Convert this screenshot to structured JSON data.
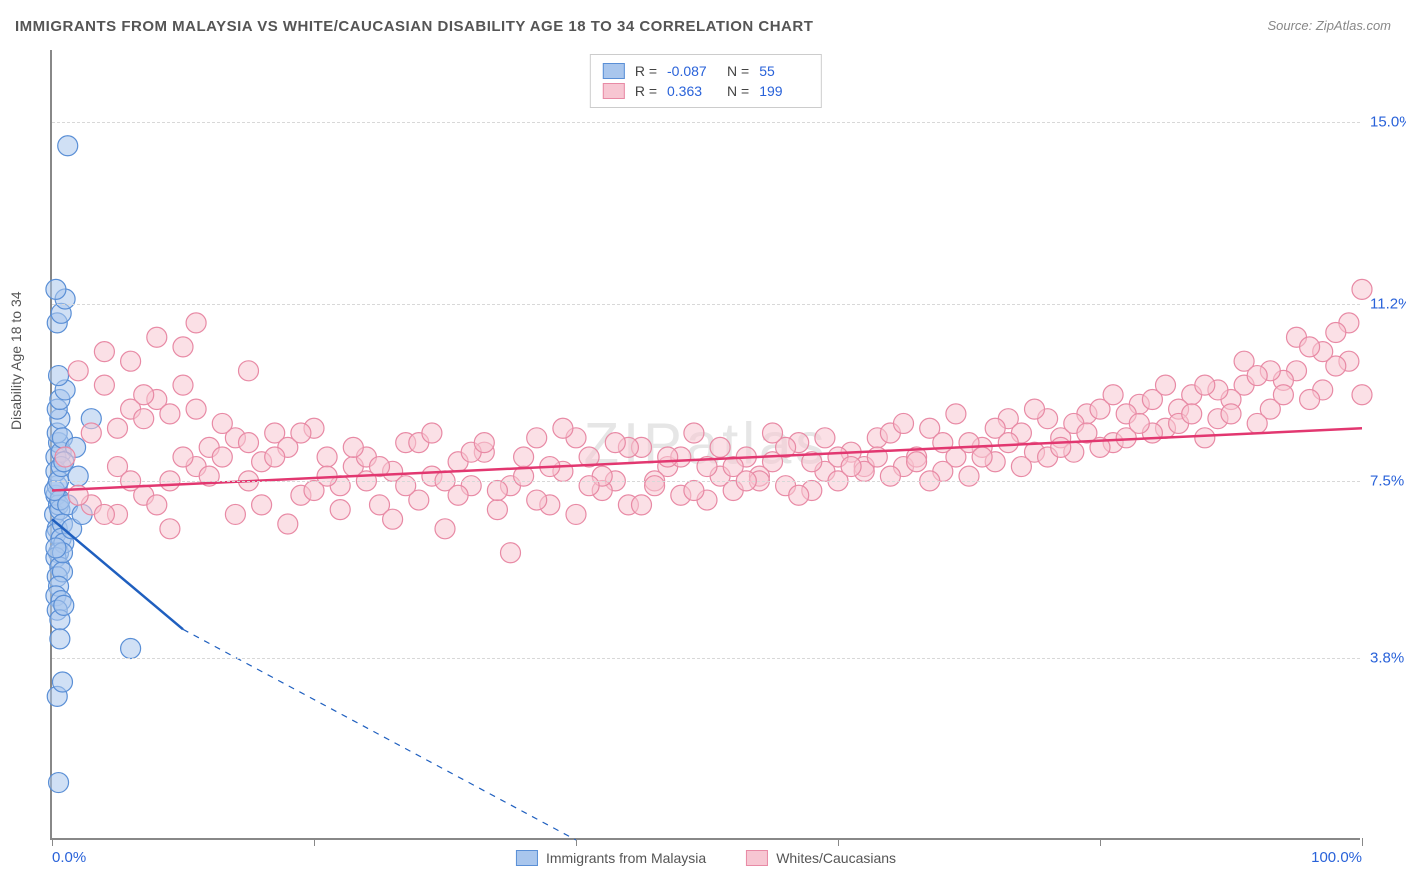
{
  "title": "IMMIGRANTS FROM MALAYSIA VS WHITE/CAUCASIAN DISABILITY AGE 18 TO 34 CORRELATION CHART",
  "source": "Source: ZipAtlas.com",
  "watermark": "ZIPatlas",
  "ylabel": "Disability Age 18 to 34",
  "chart": {
    "type": "scatter",
    "xlim": [
      0,
      100
    ],
    "ylim": [
      0,
      16.5
    ],
    "x_ticks": [
      0,
      20,
      40,
      60,
      80,
      100
    ],
    "x_tick_labels_shown": {
      "0": "0.0%",
      "100": "100.0%"
    },
    "y_gridlines": [
      3.8,
      7.5,
      11.2,
      15.0
    ],
    "y_tick_labels": [
      "3.8%",
      "7.5%",
      "11.2%",
      "15.0%"
    ],
    "background_color": "#ffffff",
    "grid_color": "#d8d8d8",
    "axis_color": "#888888",
    "title_color": "#555555",
    "tick_label_color": "#2962d9",
    "title_fontsize": 15,
    "label_fontsize": 14,
    "tick_fontsize": 15,
    "marker_radius": 10,
    "marker_opacity": 0.55,
    "line_width": 2.5
  },
  "series": [
    {
      "name": "Immigrants from Malaysia",
      "color_fill": "#a9c6ed",
      "color_stroke": "#5a8fd6",
      "line_color": "#1f5fbf",
      "R": "-0.087",
      "N": "55",
      "trend": {
        "x1": 0,
        "y1": 6.7,
        "x2": 10,
        "y2": 4.4,
        "dash_to_x": 40,
        "dash_to_y": 0
      },
      "points": [
        [
          0.2,
          6.8
        ],
        [
          0.3,
          7.2
        ],
        [
          0.5,
          7.0
        ],
        [
          0.4,
          6.5
        ],
        [
          0.6,
          6.9
        ],
        [
          0.3,
          6.4
        ],
        [
          0.8,
          6.6
        ],
        [
          0.4,
          7.4
        ],
        [
          0.6,
          7.1
        ],
        [
          0.2,
          7.3
        ],
        [
          0.7,
          6.3
        ],
        [
          0.5,
          6.0
        ],
        [
          0.9,
          6.2
        ],
        [
          0.3,
          5.9
        ],
        [
          0.6,
          5.7
        ],
        [
          0.4,
          5.5
        ],
        [
          0.8,
          5.6
        ],
        [
          0.5,
          5.3
        ],
        [
          0.3,
          5.1
        ],
        [
          0.7,
          5.0
        ],
        [
          0.4,
          4.8
        ],
        [
          0.6,
          4.6
        ],
        [
          0.9,
          4.9
        ],
        [
          0.3,
          8.0
        ],
        [
          0.5,
          8.3
        ],
        [
          0.7,
          8.1
        ],
        [
          0.4,
          8.5
        ],
        [
          0.6,
          8.8
        ],
        [
          0.8,
          8.4
        ],
        [
          0.3,
          7.7
        ],
        [
          0.5,
          7.5
        ],
        [
          0.7,
          7.8
        ],
        [
          0.4,
          9.0
        ],
        [
          0.6,
          9.2
        ],
        [
          1.0,
          9.4
        ],
        [
          0.5,
          9.7
        ],
        [
          0.8,
          6.0
        ],
        [
          1.2,
          7.0
        ],
        [
          1.5,
          6.5
        ],
        [
          1.8,
          8.2
        ],
        [
          2.0,
          7.6
        ],
        [
          2.3,
          6.8
        ],
        [
          0.4,
          10.8
        ],
        [
          0.7,
          11.0
        ],
        [
          1.0,
          11.3
        ],
        [
          0.3,
          11.5
        ],
        [
          0.6,
          4.2
        ],
        [
          0.4,
          3.0
        ],
        [
          0.8,
          3.3
        ],
        [
          0.5,
          1.2
        ],
        [
          1.2,
          14.5
        ],
        [
          3.0,
          8.8
        ],
        [
          6.0,
          4.0
        ],
        [
          0.3,
          6.1
        ],
        [
          0.9,
          7.9
        ]
      ]
    },
    {
      "name": "Whites/Caucasians",
      "color_fill": "#f7c6d2",
      "color_stroke": "#e88aa5",
      "line_color": "#e23770",
      "R": "0.363",
      "N": "199",
      "trend": {
        "x1": 0,
        "y1": 7.3,
        "x2": 100,
        "y2": 8.6
      },
      "points": [
        [
          1,
          8.0
        ],
        [
          2,
          9.8
        ],
        [
          3,
          8.5
        ],
        [
          4,
          10.2
        ],
        [
          5,
          7.8
        ],
        [
          6,
          9.0
        ],
        [
          7,
          8.8
        ],
        [
          8,
          10.5
        ],
        [
          9,
          7.5
        ],
        [
          10,
          9.5
        ],
        [
          11,
          10.8
        ],
        [
          12,
          8.2
        ],
        [
          3,
          7.0
        ],
        [
          5,
          6.8
        ],
        [
          7,
          7.2
        ],
        [
          9,
          6.5
        ],
        [
          11,
          7.8
        ],
        [
          13,
          8.0
        ],
        [
          15,
          7.5
        ],
        [
          17,
          8.5
        ],
        [
          19,
          7.2
        ],
        [
          21,
          8.0
        ],
        [
          23,
          7.8
        ],
        [
          25,
          7.0
        ],
        [
          27,
          8.3
        ],
        [
          29,
          7.6
        ],
        [
          31,
          7.9
        ],
        [
          33,
          8.1
        ],
        [
          35,
          7.4
        ],
        [
          37,
          8.4
        ],
        [
          39,
          7.7
        ],
        [
          41,
          8.0
        ],
        [
          43,
          7.5
        ],
        [
          45,
          8.2
        ],
        [
          47,
          7.8
        ],
        [
          49,
          8.5
        ],
        [
          51,
          7.6
        ],
        [
          53,
          8.0
        ],
        [
          55,
          7.9
        ],
        [
          57,
          8.3
        ],
        [
          59,
          7.7
        ],
        [
          61,
          8.1
        ],
        [
          63,
          8.4
        ],
        [
          65,
          7.8
        ],
        [
          67,
          8.6
        ],
        [
          69,
          8.0
        ],
        [
          71,
          8.2
        ],
        [
          73,
          8.8
        ],
        [
          75,
          8.1
        ],
        [
          77,
          8.4
        ],
        [
          79,
          8.9
        ],
        [
          81,
          8.3
        ],
        [
          83,
          9.1
        ],
        [
          85,
          8.6
        ],
        [
          87,
          9.3
        ],
        [
          89,
          8.8
        ],
        [
          91,
          9.5
        ],
        [
          93,
          9.0
        ],
        [
          95,
          9.8
        ],
        [
          97,
          9.4
        ],
        [
          99,
          10.0
        ],
        [
          14,
          6.8
        ],
        [
          16,
          7.0
        ],
        [
          18,
          6.6
        ],
        [
          20,
          7.3
        ],
        [
          22,
          6.9
        ],
        [
          24,
          7.5
        ],
        [
          26,
          6.7
        ],
        [
          28,
          7.1
        ],
        [
          30,
          6.5
        ],
        [
          32,
          7.4
        ],
        [
          34,
          6.9
        ],
        [
          36,
          7.6
        ],
        [
          38,
          7.0
        ],
        [
          40,
          6.8
        ],
        [
          42,
          7.3
        ],
        [
          44,
          7.0
        ],
        [
          46,
          7.5
        ],
        [
          48,
          7.2
        ],
        [
          50,
          7.8
        ],
        [
          52,
          7.3
        ],
        [
          54,
          7.6
        ],
        [
          56,
          7.4
        ],
        [
          58,
          7.9
        ],
        [
          60,
          7.5
        ],
        [
          62,
          7.8
        ],
        [
          64,
          7.6
        ],
        [
          66,
          8.0
        ],
        [
          68,
          7.7
        ],
        [
          70,
          8.3
        ],
        [
          72,
          7.9
        ],
        [
          74,
          8.5
        ],
        [
          76,
          8.0
        ],
        [
          78,
          8.7
        ],
        [
          80,
          8.2
        ],
        [
          82,
          8.9
        ],
        [
          84,
          8.5
        ],
        [
          86,
          9.0
        ],
        [
          88,
          8.4
        ],
        [
          90,
          9.2
        ],
        [
          92,
          8.7
        ],
        [
          94,
          9.6
        ],
        [
          96,
          9.2
        ],
        [
          98,
          9.9
        ],
        [
          100,
          11.5
        ],
        [
          99,
          10.8
        ],
        [
          97,
          10.2
        ],
        [
          95,
          10.5
        ],
        [
          93,
          9.8
        ],
        [
          91,
          10.0
        ],
        [
          89,
          9.4
        ],
        [
          2,
          7.2
        ],
        [
          4,
          6.8
        ],
        [
          6,
          7.5
        ],
        [
          8,
          7.0
        ],
        [
          10,
          8.0
        ],
        [
          12,
          7.6
        ],
        [
          14,
          8.4
        ],
        [
          16,
          7.9
        ],
        [
          18,
          8.2
        ],
        [
          20,
          8.6
        ],
        [
          22,
          7.4
        ],
        [
          24,
          8.0
        ],
        [
          26,
          7.7
        ],
        [
          28,
          8.3
        ],
        [
          30,
          7.5
        ],
        [
          32,
          8.1
        ],
        [
          34,
          7.3
        ],
        [
          36,
          8.0
        ],
        [
          38,
          7.8
        ],
        [
          40,
          8.4
        ],
        [
          42,
          7.6
        ],
        [
          44,
          8.2
        ],
        [
          46,
          7.4
        ],
        [
          48,
          8.0
        ],
        [
          50,
          7.1
        ],
        [
          52,
          7.8
        ],
        [
          54,
          7.5
        ],
        [
          56,
          8.2
        ],
        [
          58,
          7.3
        ],
        [
          60,
          8.0
        ],
        [
          62,
          7.7
        ],
        [
          64,
          8.5
        ],
        [
          66,
          7.9
        ],
        [
          68,
          8.3
        ],
        [
          70,
          7.6
        ],
        [
          72,
          8.6
        ],
        [
          74,
          7.8
        ],
        [
          76,
          8.8
        ],
        [
          78,
          8.1
        ],
        [
          80,
          9.0
        ],
        [
          82,
          8.4
        ],
        [
          84,
          9.2
        ],
        [
          86,
          8.7
        ],
        [
          88,
          9.5
        ],
        [
          90,
          8.9
        ],
        [
          92,
          9.7
        ],
        [
          94,
          9.3
        ],
        [
          96,
          10.3
        ],
        [
          98,
          10.6
        ],
        [
          35,
          6.0
        ],
        [
          15,
          9.8
        ],
        [
          8,
          9.2
        ],
        [
          6,
          10.0
        ],
        [
          4,
          9.5
        ],
        [
          10,
          10.3
        ],
        [
          5,
          8.6
        ],
        [
          7,
          9.3
        ],
        [
          9,
          8.9
        ],
        [
          11,
          9.0
        ],
        [
          13,
          8.7
        ],
        [
          15,
          8.3
        ],
        [
          17,
          8.0
        ],
        [
          19,
          8.5
        ],
        [
          21,
          7.6
        ],
        [
          23,
          8.2
        ],
        [
          25,
          7.8
        ],
        [
          27,
          7.4
        ],
        [
          29,
          8.5
        ],
        [
          31,
          7.2
        ],
        [
          33,
          8.3
        ],
        [
          37,
          7.1
        ],
        [
          39,
          8.6
        ],
        [
          41,
          7.4
        ],
        [
          43,
          8.3
        ],
        [
          45,
          7.0
        ],
        [
          47,
          8.0
        ],
        [
          49,
          7.3
        ],
        [
          51,
          8.2
        ],
        [
          53,
          7.5
        ],
        [
          55,
          8.5
        ],
        [
          57,
          7.2
        ],
        [
          59,
          8.4
        ],
        [
          61,
          7.8
        ],
        [
          63,
          8.0
        ],
        [
          65,
          8.7
        ],
        [
          67,
          7.5
        ],
        [
          69,
          8.9
        ],
        [
          71,
          8.0
        ],
        [
          73,
          8.3
        ],
        [
          75,
          9.0
        ],
        [
          77,
          8.2
        ],
        [
          79,
          8.5
        ],
        [
          81,
          9.3
        ],
        [
          83,
          8.7
        ],
        [
          85,
          9.5
        ],
        [
          87,
          8.9
        ],
        [
          100,
          9.3
        ]
      ]
    }
  ],
  "bottom_legend": [
    {
      "label": "Immigrants from Malaysia",
      "fill": "#a9c6ed",
      "stroke": "#5a8fd6"
    },
    {
      "label": "Whites/Caucasians",
      "fill": "#f7c6d2",
      "stroke": "#e88aa5"
    }
  ]
}
